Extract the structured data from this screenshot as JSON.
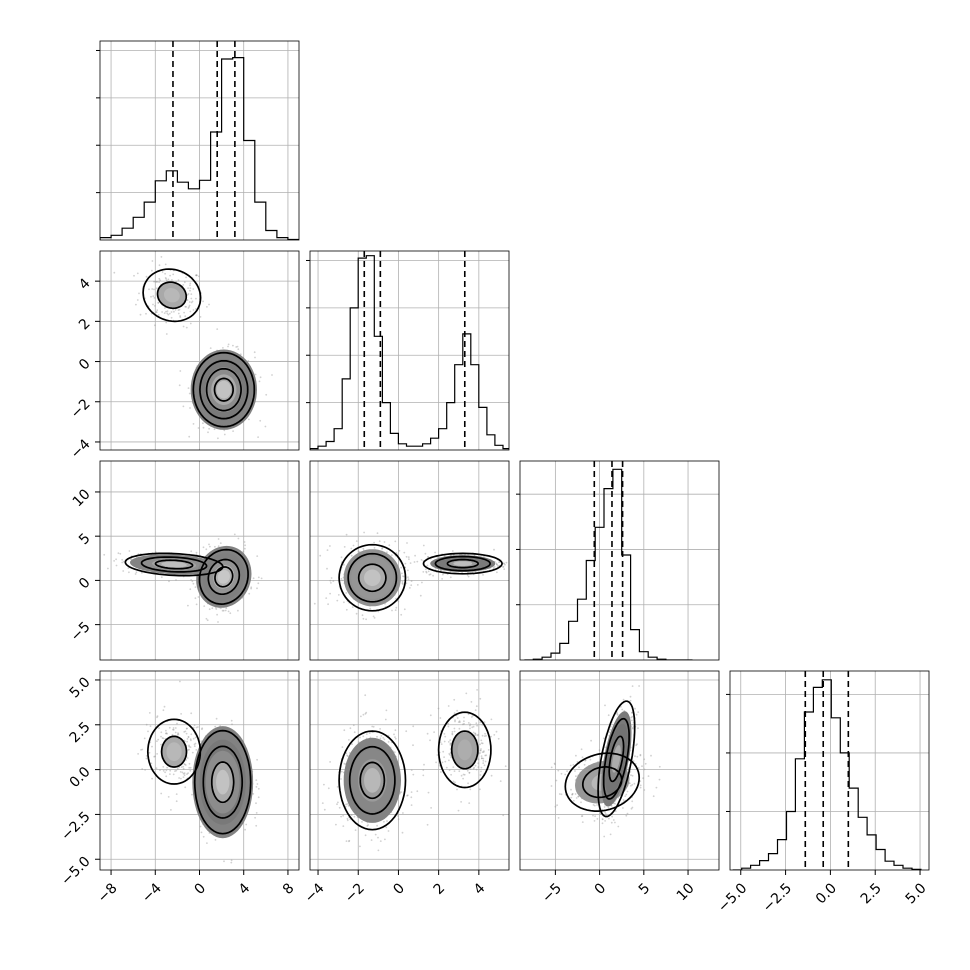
{
  "chart_data": {
    "type": "corner",
    "description": "Corner plot of 4 parameters: 1D histograms on the diagonal with dashed quantile lines, 2D density/contour panels below.",
    "style": {
      "hist_color": "#000000",
      "grid_color": "#b0b0b0",
      "contour_color": "#000000",
      "density_dark": "#000000",
      "density_light": "#d8d8d8",
      "scatter_color": "#9a9a9a"
    },
    "params": [
      {
        "range": [
          -9,
          9
        ],
        "ticks": [
          -8,
          -4,
          0,
          4,
          8
        ],
        "tick_labels": [
          "−8",
          "−4",
          "0",
          "4",
          "8"
        ],
        "hist_ticks": [
          10,
          20,
          30,
          40
        ],
        "hist_ymax": 42,
        "hist_x": [
          -8.5,
          -7.5,
          -6.5,
          -5.5,
          -4.5,
          -3.5,
          -2.5,
          -1.5,
          -0.5,
          0.5,
          1.5,
          2.5,
          3.5,
          4.5,
          5.5,
          6.5,
          7.5,
          8.5
        ],
        "hist_y": [
          0.5,
          1.0,
          2.5,
          4.8,
          8.0,
          12.5,
          14.6,
          12.2,
          10.8,
          12.6,
          22.8,
          38.2,
          38.5,
          21.0,
          8.0,
          2.0,
          0.5,
          0.1
        ],
        "quantiles": [
          -2.4,
          1.6,
          3.2
        ]
      },
      {
        "range": [
          -4.4,
          5.5
        ],
        "ticks": [
          -4,
          -2,
          0,
          2,
          4
        ],
        "tick_labels": [
          "−4",
          "−2",
          "0",
          "2",
          "4"
        ],
        "hist_ticks": [
          10,
          20,
          30,
          40
        ],
        "hist_ymax": 42,
        "hist_x": [
          -4.2,
          -3.8,
          -3.4,
          -3.0,
          -2.6,
          -2.2,
          -1.8,
          -1.4,
          -1.0,
          -0.6,
          -0.2,
          0.2,
          0.6,
          1.0,
          1.4,
          1.8,
          2.2,
          2.6,
          3.0,
          3.4,
          3.8,
          4.2,
          4.6,
          5.0,
          5.4
        ],
        "hist_y": [
          0.3,
          0.8,
          1.8,
          4.5,
          15.0,
          30.0,
          40.5,
          41.0,
          24.0,
          10.0,
          3.5,
          1.3,
          0.8,
          0.8,
          1.3,
          2.5,
          4.5,
          10.0,
          18.0,
          24.5,
          18.0,
          9.0,
          3.2,
          1.0,
          0.3
        ],
        "quantiles": [
          -1.7,
          -0.9,
          3.3
        ]
      },
      {
        "range": [
          -9,
          13.5
        ],
        "ticks": [
          -5,
          0,
          5,
          10
        ],
        "tick_labels": [
          "−5",
          "0",
          "5",
          "10"
        ],
        "hist_ticks": [
          20,
          40,
          60
        ],
        "hist_ymax": 72,
        "hist_x": [
          -8.0,
          -7.0,
          -6.0,
          -5.0,
          -4.0,
          -3.0,
          -2.0,
          -1.0,
          0.0,
          1.0,
          2.0,
          3.0,
          4.0,
          5.0,
          6.0,
          7.0,
          8.0,
          9.0,
          10.0
        ],
        "hist_y": [
          0.0,
          0.3,
          1.0,
          2.5,
          6.0,
          14.0,
          22.0,
          36.0,
          48.0,
          62.0,
          69.0,
          38.0,
          11.0,
          3.0,
          1.0,
          0.3,
          0.0,
          0.0,
          0.0
        ],
        "quantiles": [
          -0.6,
          1.4,
          2.6
        ]
      },
      {
        "range": [
          -5.6,
          5.5
        ],
        "ticks": [
          -5.0,
          -2.5,
          0.0,
          2.5,
          5.0
        ],
        "tick_labels": [
          "−5.0",
          "−2.5",
          "0.0",
          "2.5",
          "5.0"
        ],
        "hist_ticks": [
          10,
          20,
          30
        ],
        "hist_ymax": 34,
        "hist_x": [
          -5.2,
          -4.7,
          -4.2,
          -3.7,
          -3.2,
          -2.7,
          -2.2,
          -1.7,
          -1.2,
          -0.7,
          -0.2,
          0.3,
          0.8,
          1.3,
          1.8,
          2.3,
          2.8,
          3.3,
          3.8,
          4.3,
          4.8
        ],
        "hist_y": [
          0.0,
          0.3,
          0.8,
          1.6,
          2.8,
          5.2,
          10.0,
          19.0,
          27.0,
          31.2,
          32.5,
          26.0,
          20.0,
          14.0,
          9.0,
          6.0,
          3.5,
          1.5,
          0.8,
          0.3,
          0.1
        ],
        "quantiles": [
          -1.4,
          -0.4,
          1.0
        ]
      }
    ],
    "pairs": [
      {
        "x": 0,
        "y": 1,
        "blobs": [
          {
            "cx": -2.5,
            "cy": 3.3,
            "sx": 1.3,
            "sy": 0.65,
            "rho": -0.1,
            "w": 0.45,
            "density": [
              0.35,
              0.15
            ],
            "contours": [
              1.0,
              2.0
            ]
          },
          {
            "cx": 2.2,
            "cy": -1.4,
            "sx": 1.2,
            "sy": 0.8,
            "rho": 0.0,
            "w": 1.0,
            "density": [
              1.0,
              0.8,
              0.5,
              0.25,
              0.1
            ],
            "contours": [
              0.7,
              1.3,
              1.8,
              2.3
            ]
          }
        ]
      },
      {
        "x": 0,
        "y": 2,
        "blobs": [
          {
            "cx": -2.3,
            "cy": 1.8,
            "sx": 2.1,
            "sy": 0.6,
            "rho": -0.2,
            "w": 0.7,
            "density": [
              0.9,
              0.55,
              0.3,
              0.12
            ],
            "contours": [
              0.8,
              1.4,
              2.1
            ]
          },
          {
            "cx": 2.2,
            "cy": 0.4,
            "sx": 1.0,
            "sy": 1.4,
            "rho": 0.1,
            "w": 1.0,
            "density": [
              1.0,
              0.75,
              0.45,
              0.2,
              0.08
            ],
            "contours": [
              0.8,
              1.4,
              2.2
            ]
          }
        ]
      },
      {
        "x": 1,
        "y": 2,
        "blobs": [
          {
            "cx": -1.3,
            "cy": 0.3,
            "sx": 0.75,
            "sy": 1.7,
            "rho": 0.0,
            "w": 1.0,
            "density": [
              0.75,
              0.5,
              0.25,
              0.1
            ],
            "contours": [
              0.9,
              1.6,
              2.2
            ]
          },
          {
            "cx": 3.2,
            "cy": 1.9,
            "sx": 0.85,
            "sy": 0.5,
            "rho": 0.0,
            "w": 0.9,
            "density": [
              1.0,
              0.7,
              0.35,
              0.12
            ],
            "contours": [
              0.9,
              1.6,
              2.3
            ]
          }
        ]
      },
      {
        "x": 0,
        "y": 3,
        "blobs": [
          {
            "cx": -2.3,
            "cy": 1.0,
            "sx": 1.25,
            "sy": 0.95,
            "rho": 0.0,
            "w": 0.45,
            "density": [
              0.35,
              0.15
            ],
            "contours": [
              0.9,
              1.9
            ]
          },
          {
            "cx": 2.1,
            "cy": -0.7,
            "sx": 1.1,
            "sy": 1.25,
            "rho": 0.0,
            "w": 1.0,
            "density": [
              1.0,
              0.8,
              0.5,
              0.25,
              0.1
            ],
            "contours": [
              0.9,
              1.6,
              2.3
            ]
          }
        ]
      },
      {
        "x": 1,
        "y": 3,
        "blobs": [
          {
            "cx": -1.3,
            "cy": -0.6,
            "sx": 0.75,
            "sy": 1.25,
            "rho": 0.0,
            "w": 1.0,
            "density": [
              0.9,
              0.6,
              0.35,
              0.15
            ],
            "contours": [
              0.8,
              1.5,
              2.2
            ]
          },
          {
            "cx": 3.3,
            "cy": 1.1,
            "sx": 0.65,
            "sy": 1.05,
            "rho": 0.0,
            "w": 0.6,
            "density": [
              0.4,
              0.2
            ],
            "contours": [
              1.0,
              2.0
            ]
          }
        ]
      },
      {
        "x": 2,
        "y": 3,
        "blobs": [
          {
            "cx": 0.3,
            "cy": -0.7,
            "sx": 2.2,
            "sy": 0.85,
            "rho": 0.15,
            "w": 0.55,
            "density": [
              0.6,
              0.35,
              0.15
            ],
            "contours": [
              1.0,
              1.9
            ]
          },
          {
            "cx": 1.9,
            "cy": 0.6,
            "sx": 0.9,
            "sy": 1.4,
            "rho": 0.55,
            "w": 1.0,
            "density": [
              1.0,
              0.75,
              0.45,
              0.2
            ],
            "contours": [
              0.9,
              1.6,
              2.3
            ]
          }
        ]
      }
    ]
  }
}
